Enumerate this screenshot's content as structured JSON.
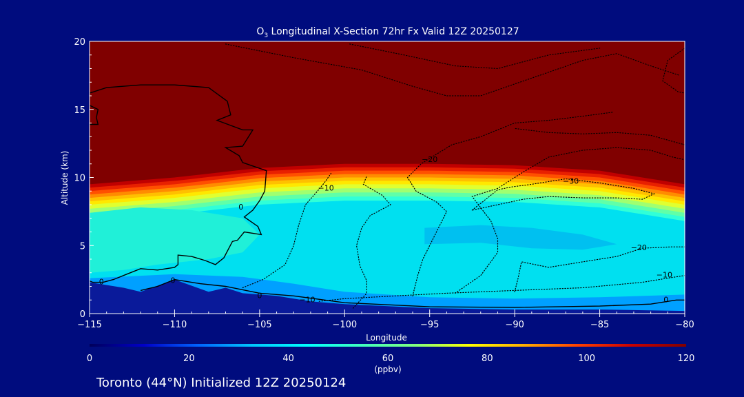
{
  "chart_data": {
    "type": "heatmap",
    "title_prefix": "O",
    "title_sub": "3",
    "title_rest": " Longitudinal X-Section 72hr  Fx Valid 12Z 20250127",
    "xlabel": "Longitude",
    "ylabel": "Altitude (km)",
    "xlim": [
      -115,
      -80
    ],
    "ylim": [
      0,
      20
    ],
    "x_ticks": [
      -115,
      -110,
      -105,
      -100,
      -95,
      -90,
      -85,
      -80
    ],
    "x_tick_labels": [
      "−115",
      "−110",
      "−105",
      "−100",
      "−95",
      "−90",
      "−85",
      "−80"
    ],
    "y_ticks": [
      0,
      5,
      10,
      15,
      20
    ],
    "y_tick_labels": [
      "0",
      "5",
      "10",
      "15",
      "20"
    ],
    "colorbar": {
      "min": 0,
      "max": 120,
      "ticks": [
        0,
        20,
        40,
        60,
        80,
        100,
        120
      ],
      "tick_labels": [
        "0",
        "20",
        "40",
        "60",
        "80",
        "100",
        "120"
      ],
      "unit_label": "(ppbv)",
      "colors": [
        "#00005a",
        "#0000c8",
        "#0064ff",
        "#00c8ff",
        "#00ffff",
        "#40ffc0",
        "#80ff80",
        "#ffff00",
        "#ffb000",
        "#ff4000",
        "#c80000",
        "#800000"
      ]
    },
    "ozone_field": {
      "description_levels_ppbv": "upper-tropospheric/stratospheric air above ~10 km exceeds 120 ppbv; mid troposphere ~40-50 ppbv; near-surface ~10-30 ppbv",
      "stratosphere_top_ppbv": 120,
      "tropopause_altitude_km": [
        {
          "lon": -115,
          "alt": 9.5
        },
        {
          "lon": -110,
          "alt": 10.0
        },
        {
          "lon": -105,
          "alt": 10.7
        },
        {
          "lon": -100,
          "alt": 11.0
        },
        {
          "lon": -95,
          "alt": 11.0
        },
        {
          "lon": -90,
          "alt": 10.9
        },
        {
          "lon": -85,
          "alt": 10.5
        },
        {
          "lon": -80,
          "alt": 9.5
        }
      ]
    },
    "terrain_km": [
      {
        "lon": -115,
        "alt": 2.3
      },
      {
        "lon": -113,
        "alt": 1.9
      },
      {
        "lon": -112,
        "alt": 1.6
      },
      {
        "lon": -110,
        "alt": 2.5
      },
      {
        "lon": -108,
        "alt": 1.6
      },
      {
        "lon": -107,
        "alt": 1.9
      },
      {
        "lon": -106,
        "alt": 1.5
      },
      {
        "lon": -104,
        "alt": 1.3
      },
      {
        "lon": -102,
        "alt": 0.9
      },
      {
        "lon": -100,
        "alt": 0.7
      },
      {
        "lon": -95,
        "alt": 0.4
      },
      {
        "lon": -90,
        "alt": 0.3
      },
      {
        "lon": -85,
        "alt": 0.3
      },
      {
        "lon": -80,
        "alt": 0.2
      }
    ],
    "contour_labels": [
      {
        "text": "0",
        "lon": -115.4,
        "alt": 14.5
      },
      {
        "text": "0",
        "lon": -106.1,
        "alt": 7.8
      },
      {
        "text": "0",
        "lon": -114.3,
        "alt": 2.3
      },
      {
        "text": "0",
        "lon": -110.1,
        "alt": 2.4
      },
      {
        "text": "0",
        "lon": -105.0,
        "alt": 1.3
      },
      {
        "text": "0",
        "lon": -81.1,
        "alt": 1.0
      },
      {
        "text": "−10",
        "lon": -101.1,
        "alt": 9.2
      },
      {
        "text": "−10",
        "lon": -102.2,
        "alt": 1.0
      },
      {
        "text": "−10",
        "lon": -81.2,
        "alt": 2.8
      },
      {
        "text": "−20",
        "lon": -95.0,
        "alt": 11.3
      },
      {
        "text": "−20",
        "lon": -82.7,
        "alt": 4.8
      },
      {
        "text": "−30",
        "lon": -86.7,
        "alt": 9.7
      }
    ],
    "contour_lines": [
      {
        "level": 0,
        "style": "solid",
        "points": [
          [
            -115,
            16.2
          ],
          [
            -114,
            16.6
          ],
          [
            -112,
            16.8
          ],
          [
            -110,
            16.8
          ],
          [
            -108,
            16.6
          ],
          [
            -106.9,
            15.6
          ],
          [
            -106.7,
            14.6
          ],
          [
            -107.5,
            14.2
          ],
          [
            -106,
            13.5
          ],
          [
            -105.4,
            13.5
          ],
          [
            -106,
            12.3
          ],
          [
            -107,
            12.2
          ],
          [
            -106.2,
            11.6
          ],
          [
            -106,
            11.1
          ],
          [
            -104.6,
            10.5
          ],
          [
            -104.7,
            9
          ],
          [
            -105,
            8.3
          ],
          [
            -105.4,
            7.6
          ],
          [
            -105.9,
            7.1
          ],
          [
            -105.1,
            6.4
          ],
          [
            -104.9,
            5.8
          ],
          [
            -105.9,
            6.0
          ],
          [
            -106.3,
            5.4
          ],
          [
            -106.6,
            5.3
          ],
          [
            -107.1,
            4.1
          ],
          [
            -107.6,
            3.6
          ],
          [
            -108.2,
            3.9
          ],
          [
            -109,
            4.2
          ],
          [
            -109.8,
            4.3
          ],
          [
            -109.8,
            3.6
          ],
          [
            -110,
            3.4
          ],
          [
            -111,
            3.2
          ],
          [
            -112,
            3.3
          ],
          [
            -112.8,
            2.9
          ],
          [
            -113.6,
            2.5
          ],
          [
            -114.2,
            2.3
          ],
          [
            -114.8,
            2.3
          ],
          [
            -115,
            2.4
          ]
        ]
      },
      {
        "level": 0,
        "style": "solid",
        "points": [
          [
            -115,
            15.3
          ],
          [
            -114.5,
            15.0
          ],
          [
            -114.6,
            14.4
          ],
          [
            -114.5,
            13.9
          ],
          [
            -115,
            13.9
          ]
        ]
      },
      {
        "level": 0,
        "style": "solid",
        "points": [
          [
            -112,
            1.7
          ],
          [
            -111,
            2.0
          ],
          [
            -110,
            2.5
          ],
          [
            -108.5,
            2.2
          ],
          [
            -107,
            2.0
          ],
          [
            -105,
            1.5
          ],
          [
            -103,
            1.3
          ],
          [
            -100,
            0.8
          ],
          [
            -95,
            0.5
          ],
          [
            -90,
            0.45
          ],
          [
            -85,
            0.55
          ],
          [
            -82,
            0.7
          ],
          [
            -80.5,
            1.0
          ],
          [
            -80,
            1.0
          ]
        ]
      },
      {
        "level": -10,
        "style": "dotted",
        "points": [
          [
            -106,
            1.9
          ],
          [
            -104.8,
            2.5
          ],
          [
            -103.5,
            3.6
          ],
          [
            -103,
            5
          ],
          [
            -102.7,
            6.5
          ],
          [
            -102.3,
            8
          ],
          [
            -101.6,
            9
          ],
          [
            -101.2,
            9.6
          ],
          [
            -100.8,
            10.3
          ]
        ]
      },
      {
        "level": -10,
        "style": "dotted",
        "points": [
          [
            -99.5,
            0.4
          ],
          [
            -98.7,
            1.5
          ],
          [
            -98.7,
            2.4
          ],
          [
            -99.1,
            3.5
          ],
          [
            -99.3,
            5
          ],
          [
            -99,
            6.3
          ],
          [
            -98.5,
            7.2
          ],
          [
            -97.3,
            8
          ],
          [
            -97.8,
            8.7
          ],
          [
            -98.9,
            9.5
          ],
          [
            -98.7,
            10.1
          ]
        ]
      },
      {
        "level": -20,
        "style": "dotted",
        "points": [
          [
            -96,
            1.3
          ],
          [
            -95.7,
            2.8
          ],
          [
            -95.4,
            4
          ],
          [
            -95,
            5
          ],
          [
            -94.6,
            6
          ],
          [
            -94,
            7.5
          ],
          [
            -94.6,
            8.2
          ],
          [
            -95.8,
            9
          ],
          [
            -96.3,
            10
          ],
          [
            -95.5,
            11
          ],
          [
            -95,
            11.4
          ],
          [
            -93.7,
            12.4
          ],
          [
            -92,
            13
          ],
          [
            -90,
            14
          ],
          [
            -88,
            14.2
          ],
          [
            -86,
            14.5
          ],
          [
            -84.2,
            14.8
          ]
        ]
      },
      {
        "level": -20,
        "style": "dotted",
        "points": [
          [
            -93.5,
            1.5
          ],
          [
            -92,
            2.8
          ],
          [
            -91,
            4.5
          ],
          [
            -91,
            5.5
          ],
          [
            -91.4,
            6.8
          ],
          [
            -92.5,
            8.6
          ],
          [
            -91,
            9.2
          ],
          [
            -89.5,
            10.4
          ],
          [
            -88,
            11.5
          ],
          [
            -86,
            12
          ],
          [
            -84,
            12.2
          ],
          [
            -82,
            12
          ],
          [
            -80.7,
            11.5
          ],
          [
            -80,
            11.3
          ]
        ]
      },
      {
        "level": -20,
        "style": "dotted",
        "points": [
          [
            -90,
            1.6
          ],
          [
            -89.8,
            2.6
          ],
          [
            -89.6,
            3.8
          ],
          [
            -88,
            3.4
          ],
          [
            -86,
            3.8
          ],
          [
            -84,
            4.2
          ],
          [
            -82.5,
            4.8
          ],
          [
            -80.8,
            4.9
          ],
          [
            -80,
            4.9
          ]
        ]
      },
      {
        "level": -30,
        "style": "dotted",
        "points": [
          [
            -92.5,
            7.6
          ],
          [
            -91,
            9.1
          ],
          [
            -90.2,
            9.3
          ],
          [
            -89,
            9.5
          ],
          [
            -87,
            9.9
          ],
          [
            -85,
            9.6
          ],
          [
            -83,
            9.2
          ],
          [
            -81.8,
            8.8
          ],
          [
            -82.5,
            8.4
          ],
          [
            -84,
            8.5
          ],
          [
            -86,
            8.5
          ],
          [
            -88,
            8.6
          ],
          [
            -89.5,
            8.4
          ],
          [
            -92.5,
            7.6
          ]
        ]
      },
      {
        "level": -30,
        "style": "dotted",
        "points": [
          [
            -107,
            19.8
          ],
          [
            -103,
            18.8
          ],
          [
            -99,
            17.9
          ],
          [
            -96,
            16.7
          ],
          [
            -94,
            16
          ],
          [
            -92,
            16
          ],
          [
            -89,
            17.3
          ],
          [
            -86,
            18.6
          ],
          [
            -84,
            19.1
          ],
          [
            -82,
            18.2
          ],
          [
            -80.3,
            17.5
          ]
        ]
      },
      {
        "level": -30,
        "style": "dotted",
        "points": [
          [
            -99.7,
            19.8
          ],
          [
            -96.5,
            19
          ],
          [
            -93.5,
            18.2
          ],
          [
            -91,
            18
          ],
          [
            -88,
            19
          ],
          [
            -85,
            19.5
          ]
        ]
      },
      {
        "level": -30,
        "style": "dotted",
        "points": [
          [
            -80,
            19.5
          ],
          [
            -81,
            18.6
          ],
          [
            -81.3,
            17.1
          ],
          [
            -80.4,
            16.3
          ],
          [
            -80,
            16.2
          ]
        ]
      },
      {
        "level": -20,
        "style": "dotted",
        "points": [
          [
            -80,
            12.4
          ],
          [
            -82,
            13.1
          ],
          [
            -84,
            13.3
          ],
          [
            -86,
            13.2
          ],
          [
            -88,
            13.3
          ],
          [
            -90,
            13.6
          ]
        ]
      },
      {
        "level": -10,
        "style": "dotted",
        "points": [
          [
            -101.5,
            0.9
          ],
          [
            -100,
            1.1
          ],
          [
            -97,
            1.3
          ],
          [
            -94,
            1.5
          ],
          [
            -90,
            1.7
          ],
          [
            -86,
            1.9
          ],
          [
            -82.5,
            2.3
          ],
          [
            -81,
            2.6
          ],
          [
            -80,
            2.8
          ]
        ]
      }
    ]
  },
  "footer": {
    "caption": "Toronto (44°N) Initialized 12Z 20250124"
  }
}
